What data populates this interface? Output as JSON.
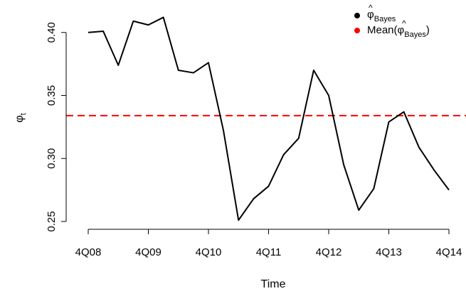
{
  "chart_data": {
    "type": "line",
    "title": "",
    "xlabel": "Time",
    "ylabel": "φ",
    "ylabel_subscript": "t",
    "x_ticks": [
      {
        "label": "4Q08",
        "x": 0
      },
      {
        "label": "4Q09",
        "x": 4
      },
      {
        "label": "4Q10",
        "x": 8
      },
      {
        "label": "4Q11",
        "x": 12
      },
      {
        "label": "4Q12",
        "x": 16
      },
      {
        "label": "4Q13",
        "x": 20
      },
      {
        "label": "4Q14",
        "x": 24
      }
    ],
    "y_ticks": [
      "0.25",
      "0.30",
      "0.35",
      "0.40"
    ],
    "xlim": [
      0,
      24
    ],
    "ylim": [
      0.25,
      0.41
    ],
    "grid": false,
    "legend_position": "top-right",
    "series": [
      {
        "x": [
          0,
          1,
          2,
          3,
          4,
          5,
          6,
          7,
          8,
          9,
          10,
          11,
          12,
          13,
          14,
          15,
          16,
          17,
          18,
          19,
          20,
          21,
          22,
          23,
          24
        ],
        "values": [
          0.4,
          0.401,
          0.374,
          0.409,
          0.406,
          0.412,
          0.37,
          0.368,
          0.376,
          0.322,
          0.251,
          0.268,
          0.278,
          0.303,
          0.316,
          0.37,
          0.35,
          0.295,
          0.259,
          0.276,
          0.329,
          0.337,
          0.309,
          0.291,
          0.275
        ],
        "color": "#000000"
      }
    ],
    "reference_line": {
      "y": 0.334,
      "color": "#ff0000",
      "style": "dashed"
    },
    "legend": [
      {
        "base": "φ",
        "sub": "Bayes",
        "prefix": "",
        "suffix": "",
        "color": "#000000"
      },
      {
        "base": "φ",
        "sub": "Bayes",
        "prefix": "Mean(",
        "suffix": ")",
        "color": "#ff0000"
      }
    ]
  }
}
